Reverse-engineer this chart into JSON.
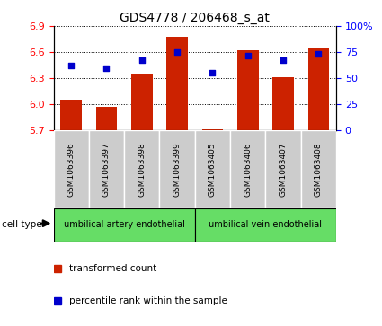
{
  "title": "GDS4778 / 206468_s_at",
  "samples": [
    "GSM1063396",
    "GSM1063397",
    "GSM1063398",
    "GSM1063399",
    "GSM1063405",
    "GSM1063406",
    "GSM1063407",
    "GSM1063408"
  ],
  "transformed_counts": [
    6.05,
    5.97,
    6.35,
    6.78,
    5.71,
    6.62,
    6.31,
    6.64
  ],
  "percentile_ranks": [
    62,
    60,
    67,
    75,
    55,
    72,
    67,
    73
  ],
  "ylim_left": [
    5.7,
    6.9
  ],
  "ylim_right": [
    0,
    100
  ],
  "yticks_left": [
    5.7,
    6.0,
    6.3,
    6.6,
    6.9
  ],
  "yticks_right": [
    0,
    25,
    50,
    75,
    100
  ],
  "ytick_labels_right": [
    "0",
    "25",
    "50",
    "75",
    "100%"
  ],
  "bar_color": "#cc2200",
  "dot_color": "#0000cc",
  "bar_bottom": 5.7,
  "group1_label": "umbilical artery endothelial",
  "group2_label": "umbilical vein endothelial",
  "cell_type_label": "cell type",
  "legend_bar_label": "transformed count",
  "legend_dot_label": "percentile rank within the sample",
  "background_color": "#ffffff",
  "group_bg_color": "#66dd66",
  "label_bg_color": "#cccccc",
  "fig_width": 4.25,
  "fig_height": 3.63,
  "dpi": 100
}
